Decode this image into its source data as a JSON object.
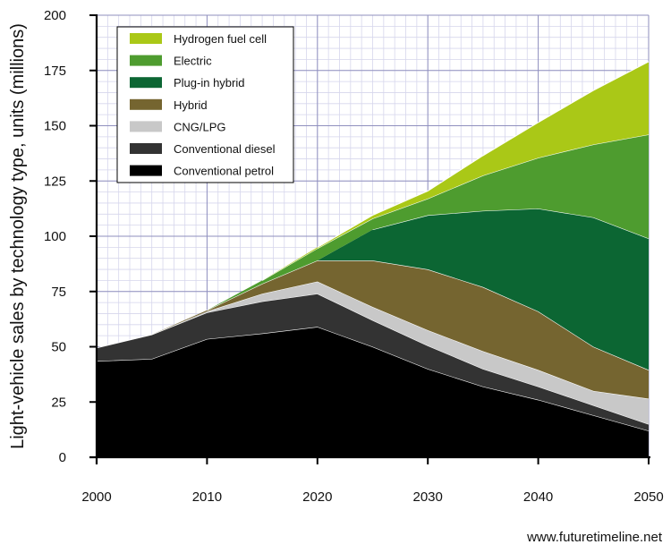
{
  "chart_data": {
    "type": "area",
    "stacked": true,
    "title": "",
    "xlabel": "",
    "ylabel": "Light-vehicle sales by technology type, units (millions)",
    "xlim": [
      2000,
      2050
    ],
    "ylim": [
      0,
      200
    ],
    "x_ticks": [
      "2000",
      "2010",
      "2020",
      "2030",
      "2040",
      "2050"
    ],
    "y_ticks": [
      "0",
      "25",
      "50",
      "75",
      "100",
      "125",
      "150",
      "175",
      "200"
    ],
    "grid": true,
    "legend_position": "top-left",
    "x": [
      2000,
      2005,
      2010,
      2015,
      2020,
      2025,
      2030,
      2035,
      2040,
      2045,
      2050
    ],
    "series": [
      {
        "name": "Conventional petrol",
        "color": "#000000",
        "values": [
          43.5,
          44.5,
          53.5,
          56,
          59,
          50,
          40,
          32,
          26,
          19,
          12
        ]
      },
      {
        "name": "Conventional diesel",
        "color": "#333333",
        "values": [
          6,
          11,
          12,
          14.5,
          15,
          12,
          10.5,
          8,
          6,
          4.5,
          3
        ]
      },
      {
        "name": "CNG/LPG",
        "color": "#c8c8c8",
        "values": [
          0,
          0,
          0.5,
          3.5,
          5.5,
          6,
          7,
          8,
          7.5,
          6.5,
          11.5
        ]
      },
      {
        "name": "Hybrid",
        "color": "#756530",
        "values": [
          0,
          0,
          0.5,
          4.5,
          9.5,
          21,
          27.5,
          29,
          26.5,
          20,
          13
        ]
      },
      {
        "name": "Plug-in hybrid",
        "color": "#0c6633",
        "values": [
          0,
          0,
          0,
          0,
          0,
          14,
          24.5,
          34.5,
          46.5,
          58.5,
          59.5
        ]
      },
      {
        "name": "Electric",
        "color": "#4e9c2f",
        "values": [
          0,
          0,
          0,
          1.5,
          5.5,
          5,
          7.5,
          16,
          23,
          33,
          47
        ]
      },
      {
        "name": "Hydrogen fuel cell",
        "color": "#aac817",
        "values": [
          0,
          0,
          0,
          0,
          0.5,
          1.5,
          3.5,
          9,
          16,
          24.5,
          33
        ]
      }
    ]
  },
  "credit": "www.futuretimeline.net"
}
